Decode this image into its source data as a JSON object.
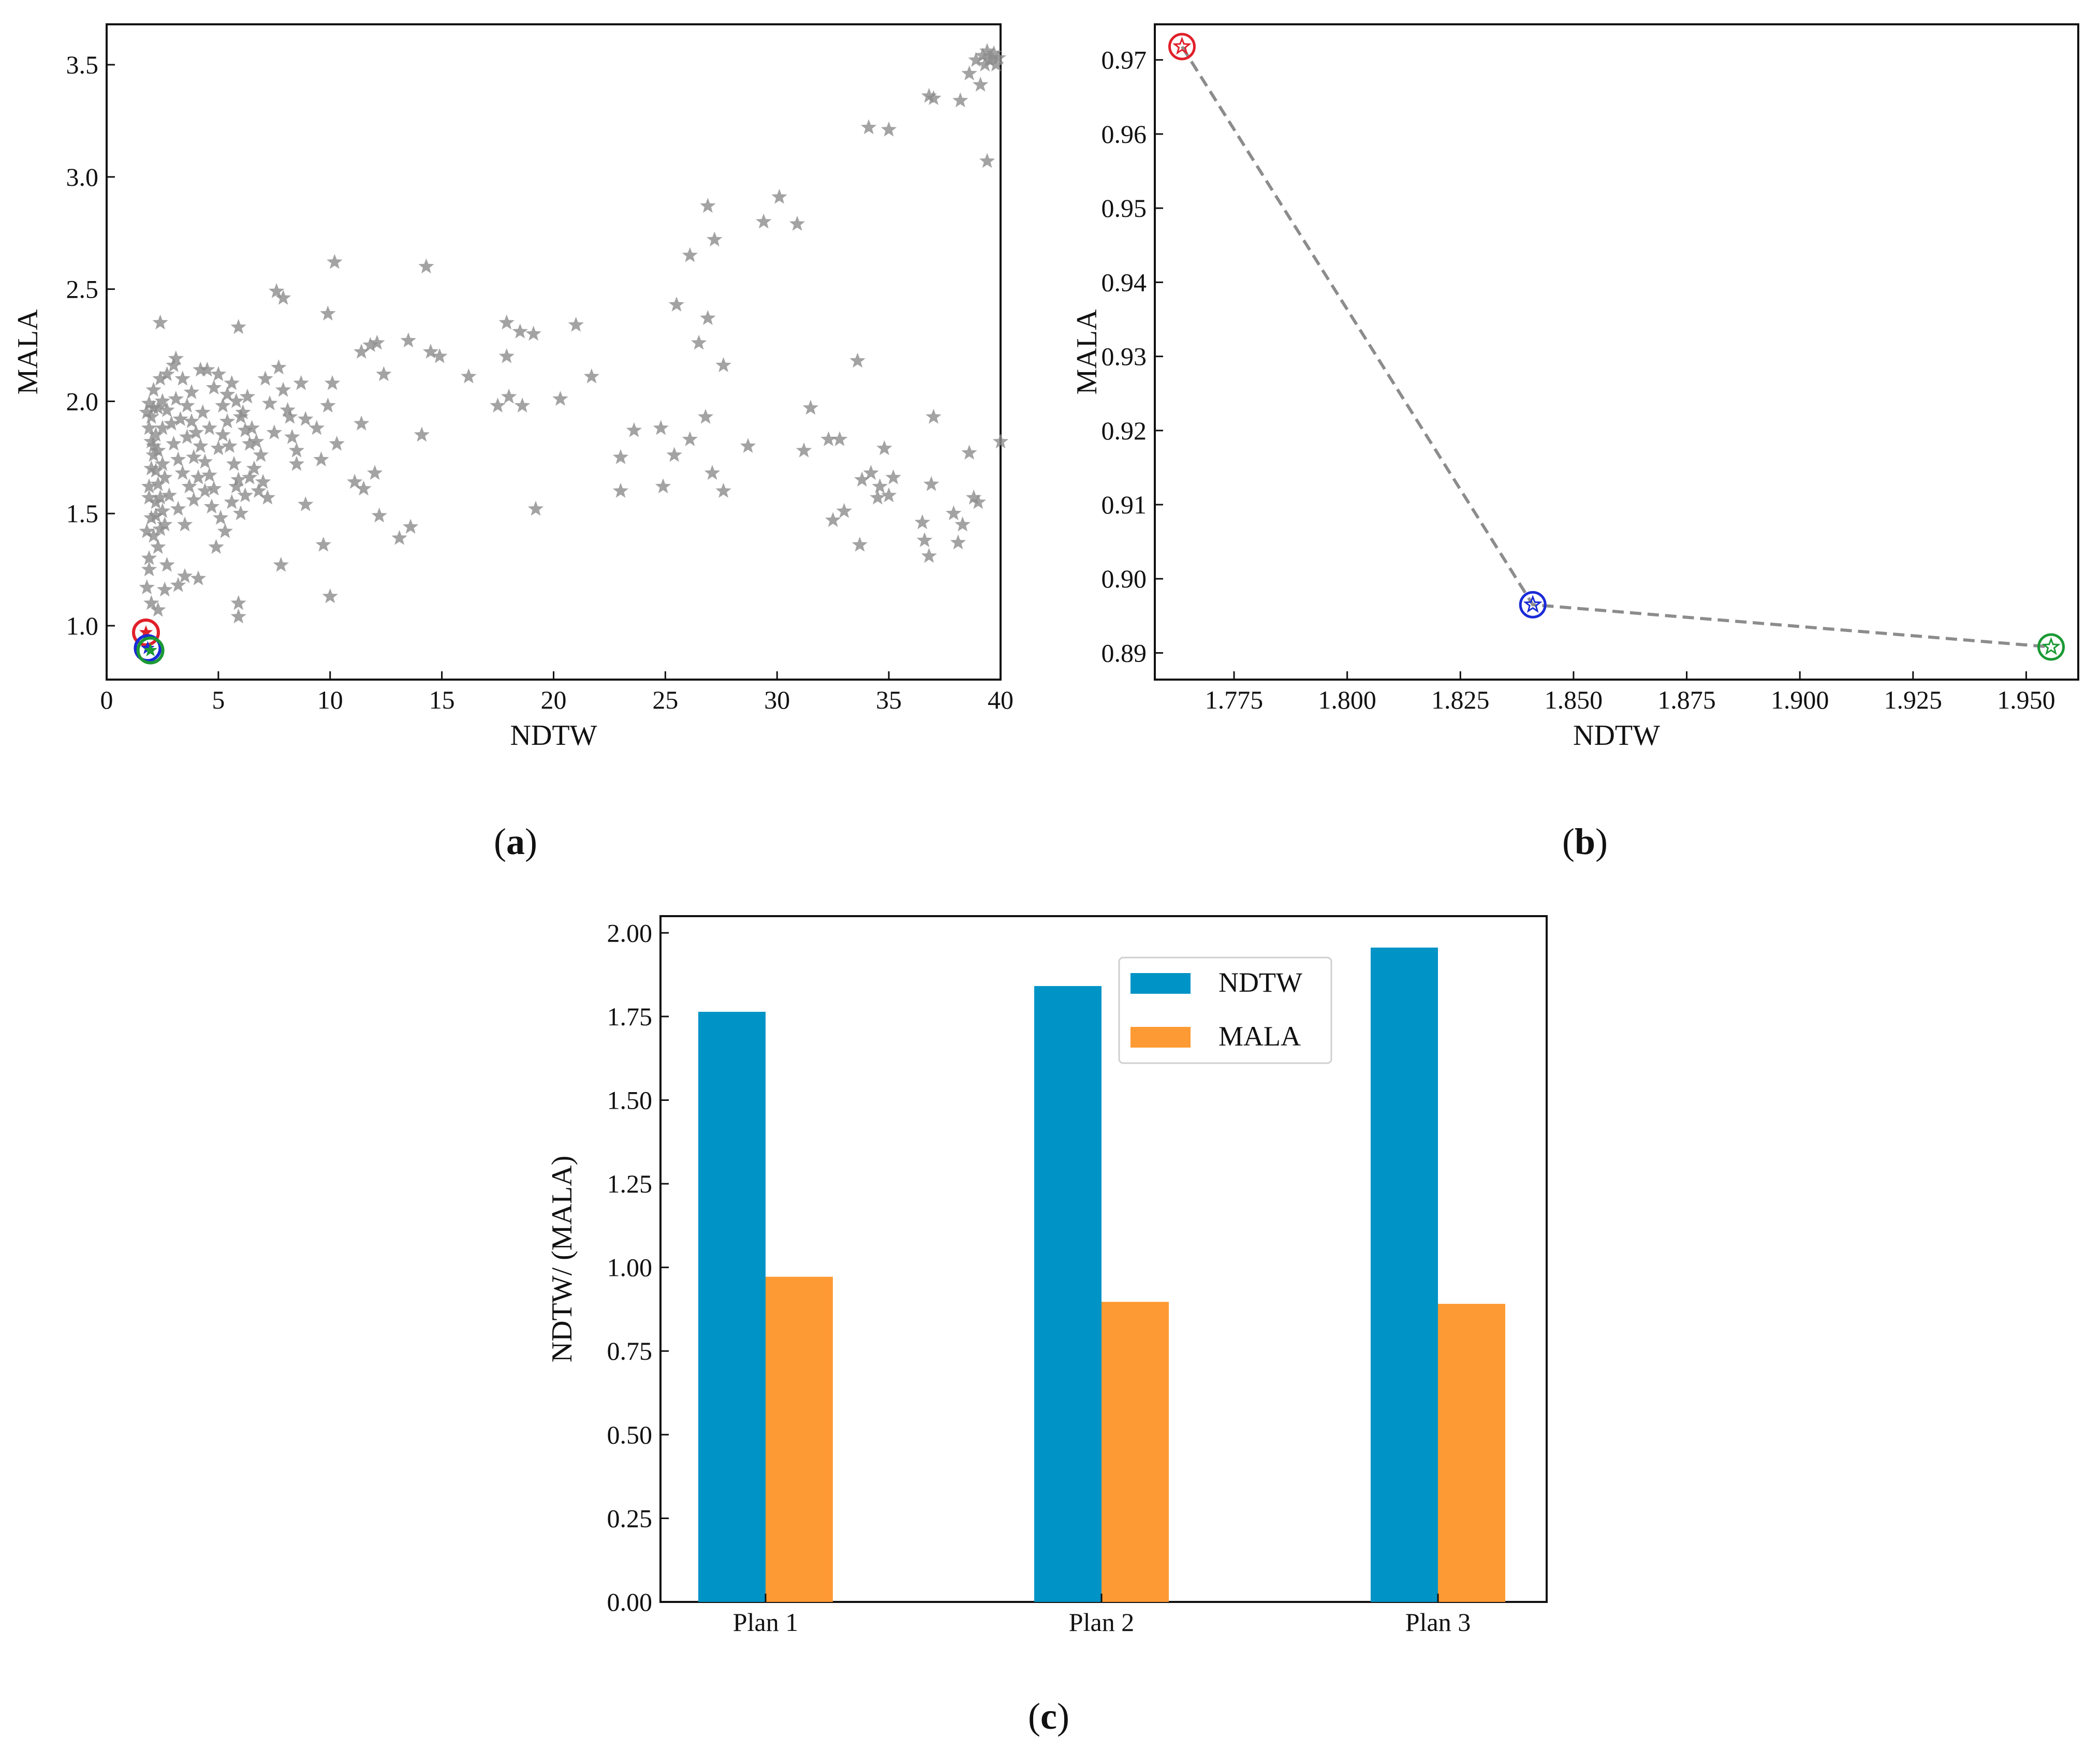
{
  "chart_data": [
    {
      "id": "a",
      "type": "scatter",
      "xlabel": "NDTW",
      "ylabel": "MALA",
      "xlim": [
        0,
        40
      ],
      "ylim": [
        0.76,
        3.68
      ],
      "xticks": [
        0,
        5,
        10,
        15,
        20,
        25,
        30,
        35,
        40
      ],
      "yticks": [
        1.0,
        1.5,
        2.0,
        2.5,
        3.0,
        3.5
      ],
      "xtick_labels": [
        "0",
        "5",
        "10",
        "15",
        "20",
        "25",
        "30",
        "35",
        "40"
      ],
      "ytick_labels": [
        "1.0",
        "1.5",
        "2.0",
        "2.5",
        "3.0",
        "3.5"
      ],
      "caption_prefix": "(",
      "caption_letter": "a",
      "caption_suffix": ")",
      "marker_color": "#8c8c8c",
      "points_note": "dense cloud of gray star markers",
      "points": [
        [
          39.2,
          3.54
        ],
        [
          39.5,
          3.52
        ],
        [
          39.8,
          3.5
        ],
        [
          39.4,
          3.56
        ],
        [
          39.6,
          3.53
        ],
        [
          38.9,
          3.52
        ],
        [
          39.7,
          3.55
        ],
        [
          39.3,
          3.5
        ],
        [
          39.9,
          3.53
        ],
        [
          38.6,
          3.46
        ],
        [
          38.2,
          3.34
        ],
        [
          39.1,
          3.41
        ],
        [
          36.8,
          3.36
        ],
        [
          37.0,
          3.35
        ],
        [
          39.4,
          3.07
        ],
        [
          34.1,
          3.22
        ],
        [
          35.0,
          3.21
        ],
        [
          26.9,
          2.87
        ],
        [
          27.2,
          2.72
        ],
        [
          26.1,
          2.65
        ],
        [
          30.1,
          2.91
        ],
        [
          29.4,
          2.8
        ],
        [
          30.9,
          2.79
        ],
        [
          25.5,
          2.43
        ],
        [
          26.9,
          2.37
        ],
        [
          26.5,
          2.26
        ],
        [
          27.6,
          2.16
        ],
        [
          33.6,
          2.18
        ],
        [
          10.2,
          2.62
        ],
        [
          14.3,
          2.6
        ],
        [
          7.6,
          2.49
        ],
        [
          7.9,
          2.46
        ],
        [
          9.9,
          2.39
        ],
        [
          5.9,
          2.33
        ],
        [
          2.4,
          2.35
        ],
        [
          13.5,
          2.27
        ],
        [
          14.5,
          2.22
        ],
        [
          14.9,
          2.2
        ],
        [
          11.8,
          2.25
        ],
        [
          12.1,
          2.26
        ],
        [
          17.9,
          2.35
        ],
        [
          18.5,
          2.31
        ],
        [
          19.1,
          2.3
        ],
        [
          21.0,
          2.34
        ],
        [
          17.9,
          2.2
        ],
        [
          16.2,
          2.11
        ],
        [
          21.7,
          2.11
        ],
        [
          18.0,
          2.02
        ],
        [
          18.6,
          1.98
        ],
        [
          17.5,
          1.98
        ],
        [
          20.3,
          2.01
        ],
        [
          19.2,
          1.52
        ],
        [
          12.4,
          2.12
        ],
        [
          11.4,
          2.22
        ],
        [
          23.6,
          1.87
        ],
        [
          24.8,
          1.88
        ],
        [
          26.1,
          1.83
        ],
        [
          25.4,
          1.76
        ],
        [
          26.8,
          1.93
        ],
        [
          23.0,
          1.75
        ],
        [
          28.7,
          1.8
        ],
        [
          27.1,
          1.68
        ],
        [
          27.6,
          1.6
        ],
        [
          23.0,
          1.6
        ],
        [
          24.9,
          1.62
        ],
        [
          31.5,
          1.97
        ],
        [
          32.3,
          1.83
        ],
        [
          32.8,
          1.83
        ],
        [
          31.2,
          1.78
        ],
        [
          33.0,
          1.51
        ],
        [
          32.5,
          1.47
        ],
        [
          33.7,
          1.36
        ],
        [
          34.2,
          1.68
        ],
        [
          33.8,
          1.65
        ],
        [
          34.6,
          1.62
        ],
        [
          35.0,
          1.58
        ],
        [
          34.8,
          1.79
        ],
        [
          35.2,
          1.66
        ],
        [
          34.5,
          1.57
        ],
        [
          37.0,
          1.93
        ],
        [
          36.9,
          1.63
        ],
        [
          36.5,
          1.46
        ],
        [
          36.6,
          1.38
        ],
        [
          36.8,
          1.31
        ],
        [
          37.9,
          1.5
        ],
        [
          38.3,
          1.45
        ],
        [
          38.1,
          1.37
        ],
        [
          38.8,
          1.57
        ],
        [
          39.0,
          1.55
        ],
        [
          38.6,
          1.77
        ],
        [
          40.0,
          1.82
        ],
        [
          14.1,
          1.85
        ],
        [
          13.6,
          1.44
        ],
        [
          13.1,
          1.39
        ],
        [
          12.2,
          1.49
        ],
        [
          11.4,
          1.9
        ],
        [
          10.3,
          1.81
        ],
        [
          11.1,
          1.64
        ],
        [
          11.5,
          1.61
        ],
        [
          12.0,
          1.68
        ],
        [
          9.7,
          1.36
        ],
        [
          10.0,
          1.13
        ],
        [
          9.6,
          1.74
        ],
        [
          9.9,
          1.98
        ],
        [
          10.1,
          2.08
        ],
        [
          9.4,
          1.88
        ],
        [
          8.9,
          1.54
        ],
        [
          7.8,
          1.27
        ],
        [
          7.2,
          1.57
        ],
        [
          8.5,
          1.72
        ],
        [
          8.2,
          1.93
        ],
        [
          5.9,
          1.04
        ],
        [
          5.9,
          1.1
        ],
        [
          4.9,
          1.35
        ],
        [
          4.1,
          1.21
        ],
        [
          3.5,
          1.22
        ],
        [
          3.2,
          1.18
        ],
        [
          2.6,
          1.16
        ],
        [
          2.7,
          1.27
        ],
        [
          2.3,
          1.07
        ],
        [
          2.0,
          1.1
        ],
        [
          1.8,
          1.17
        ],
        [
          1.9,
          1.25
        ],
        [
          1.9,
          1.3
        ],
        [
          2.1,
          1.4
        ],
        [
          2.2,
          1.49
        ],
        [
          1.9,
          1.57
        ],
        [
          1.9,
          1.62
        ],
        [
          2.0,
          1.7
        ],
        [
          2.1,
          1.8
        ],
        [
          2.2,
          1.85
        ],
        [
          2.0,
          1.93
        ],
        [
          2.3,
          1.97
        ],
        [
          2.1,
          2.05
        ],
        [
          2.4,
          2.1
        ],
        [
          2.3,
          1.78
        ],
        [
          2.5,
          1.72
        ],
        [
          2.6,
          1.66
        ],
        [
          2.8,
          1.58
        ],
        [
          2.9,
          1.9
        ],
        [
          3.1,
          2.01
        ],
        [
          3.3,
          1.92
        ],
        [
          3.6,
          1.84
        ],
        [
          3.9,
          1.75
        ],
        [
          4.1,
          1.66
        ],
        [
          4.3,
          1.95
        ],
        [
          4.6,
          1.88
        ],
        [
          4.8,
          2.06
        ],
        [
          5.0,
          2.12
        ],
        [
          5.2,
          1.98
        ],
        [
          5.4,
          1.91
        ],
        [
          5.5,
          1.8
        ],
        [
          5.7,
          1.72
        ],
        [
          5.9,
          1.65
        ],
        [
          6.1,
          1.95
        ],
        [
          6.3,
          2.02
        ],
        [
          6.5,
          1.88
        ],
        [
          6.7,
          1.82
        ],
        [
          6.9,
          1.76
        ],
        [
          7.1,
          2.1
        ],
        [
          7.3,
          1.99
        ],
        [
          7.5,
          1.86
        ],
        [
          7.7,
          2.15
        ],
        [
          7.9,
          2.05
        ],
        [
          8.1,
          1.96
        ],
        [
          8.3,
          1.84
        ],
        [
          8.5,
          1.78
        ],
        [
          8.7,
          2.08
        ],
        [
          8.9,
          1.92
        ],
        [
          3.0,
          2.16
        ],
        [
          3.4,
          2.1
        ],
        [
          3.8,
          2.04
        ],
        [
          4.2,
          2.14
        ],
        [
          4.4,
          1.6
        ],
        [
          4.7,
          1.53
        ],
        [
          5.1,
          1.48
        ],
        [
          5.3,
          1.42
        ],
        [
          5.6,
          1.55
        ],
        [
          5.8,
          1.62
        ],
        [
          6.0,
          1.5
        ],
        [
          6.2,
          1.58
        ],
        [
          6.4,
          1.66
        ],
        [
          6.6,
          1.7
        ],
        [
          6.8,
          1.6
        ],
        [
          7.0,
          1.64
        ],
        [
          3.2,
          1.52
        ],
        [
          3.5,
          1.45
        ],
        [
          3.7,
          1.62
        ],
        [
          3.9,
          1.56
        ],
        [
          2.5,
          1.88
        ],
        [
          2.7,
          1.96
        ],
        [
          3.0,
          1.81
        ],
        [
          3.2,
          1.74
        ],
        [
          3.4,
          1.68
        ],
        [
          3.6,
          1.98
        ],
        [
          3.8,
          1.91
        ],
        [
          4.0,
          1.86
        ],
        [
          4.2,
          1.8
        ],
        [
          4.4,
          1.73
        ],
        [
          4.6,
          1.67
        ],
        [
          4.8,
          1.61
        ],
        [
          5.0,
          1.79
        ],
        [
          5.2,
          1.85
        ],
        [
          5.4,
          2.03
        ],
        [
          5.6,
          2.08
        ],
        [
          5.8,
          2.0
        ],
        [
          6.0,
          1.93
        ],
        [
          6.2,
          1.87
        ],
        [
          6.4,
          1.81
        ],
        [
          1.8,
          1.95
        ],
        [
          1.9,
          1.88
        ],
        [
          2.0,
          1.82
        ],
        [
          2.1,
          1.76
        ],
        [
          2.2,
          1.69
        ],
        [
          2.3,
          1.63
        ],
        [
          2.4,
          1.57
        ],
        [
          2.5,
          1.51
        ],
        [
          2.6,
          1.45
        ],
        [
          2.2,
          1.55
        ],
        [
          2.0,
          1.48
        ],
        [
          1.8,
          1.42
        ],
        [
          2.3,
          1.35
        ],
        [
          2.4,
          1.43
        ],
        [
          2.1,
          1.97
        ],
        [
          1.9,
          1.99
        ],
        [
          2.5,
          2.0
        ],
        [
          2.7,
          2.12
        ],
        [
          3.1,
          2.19
        ],
        [
          4.5,
          2.14
        ]
      ],
      "highlight_points": [
        {
          "x": 1.76,
          "y": 0.97,
          "color": "#e0202a"
        },
        {
          "x": 1.84,
          "y": 0.9,
          "color": "#1a2bd6"
        },
        {
          "x": 1.96,
          "y": 0.89,
          "color": "#1a9a34"
        }
      ]
    },
    {
      "id": "b",
      "type": "line",
      "xlabel": "NDTW",
      "ylabel": "MALA",
      "xlim": [
        1.7575,
        1.9615
      ],
      "ylim": [
        0.8864,
        0.9748
      ],
      "xticks": [
        1.775,
        1.8,
        1.825,
        1.85,
        1.875,
        1.9,
        1.925,
        1.95
      ],
      "yticks": [
        0.89,
        0.9,
        0.91,
        0.92,
        0.93,
        0.94,
        0.95,
        0.96,
        0.97
      ],
      "xtick_labels": [
        "1.775",
        "1.800",
        "1.825",
        "1.850",
        "1.875",
        "1.900",
        "1.925",
        "1.950"
      ],
      "ytick_labels": [
        "0.89",
        "0.90",
        "0.91",
        "0.92",
        "0.93",
        "0.94",
        "0.95",
        "0.96",
        "0.97"
      ],
      "caption_prefix": "(",
      "caption_letter": "b",
      "caption_suffix": ")",
      "line_color": "#8c8c8c",
      "points": [
        {
          "x": 1.7635,
          "y": 0.9718,
          "color": "#e0202a"
        },
        {
          "x": 1.841,
          "y": 0.8965,
          "color": "#1a2bd6"
        },
        {
          "x": 1.9555,
          "y": 0.8908,
          "color": "#1a9a34"
        }
      ]
    },
    {
      "id": "c",
      "type": "bar",
      "ylabel": "NDTW/ (MALA)",
      "ylim": [
        0,
        2.05
      ],
      "yticks": [
        0,
        0.25,
        0.5,
        0.75,
        1.0,
        1.25,
        1.5,
        1.75,
        2.0
      ],
      "ytick_labels": [
        "0.00",
        "0.25",
        "0.50",
        "0.75",
        "1.00",
        "1.25",
        "1.50",
        "1.75",
        "2.00"
      ],
      "categories": [
        "Plan 1",
        "Plan 2",
        "Plan 3"
      ],
      "series": [
        {
          "name": "NDTW",
          "color": "#0093c6",
          "values": [
            1.764,
            1.841,
            1.956
          ]
        },
        {
          "name": "MALA",
          "color": "#fe9a33",
          "values": [
            0.972,
            0.897,
            0.891
          ]
        }
      ],
      "legend_position": "top-right",
      "caption_prefix": "(",
      "caption_letter": "c",
      "caption_suffix": ")"
    }
  ]
}
